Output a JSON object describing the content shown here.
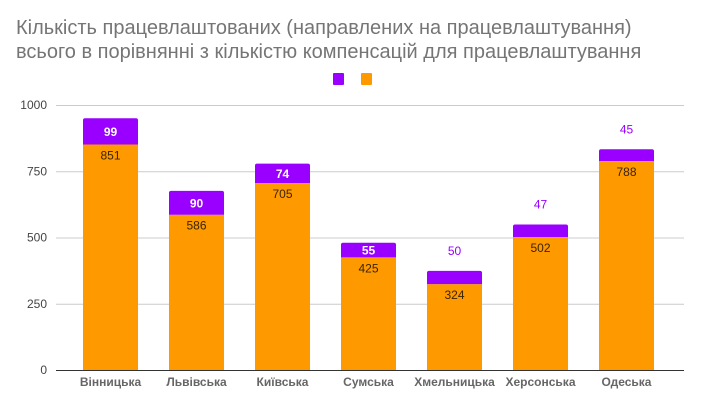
{
  "chart_data": {
    "type": "bar",
    "stacked": true,
    "title_lines": [
      "Кількість працевлаштованих (направлених на працевлаштування)",
      "всього в порівнянні з кількістю компенсацій для працевлаштування"
    ],
    "xlabel": "",
    "ylabel": "",
    "categories": [
      "Вінницька",
      "Львівська",
      "Київська",
      "Сумська",
      "Хмельницька",
      "Херсонська",
      "Одеська"
    ],
    "series": [
      {
        "name": "",
        "color": "#ff9900",
        "values": [
          851,
          586,
          705,
          425,
          324,
          502,
          788
        ]
      },
      {
        "name": "",
        "color": "#9900ff",
        "values": [
          99,
          90,
          74,
          55,
          50,
          47,
          45
        ]
      }
    ],
    "ylim": [
      0,
      1000
    ],
    "yticks": [
      0,
      250,
      500,
      750,
      1000
    ],
    "grid": true,
    "legend_position": "top-center",
    "colors": {
      "title": "#757575",
      "grid": "#cccccc",
      "axis": "#333333",
      "label_on_orange": "#3a2400",
      "label_on_purple": "#ffffff",
      "label_outside": "#9900ff"
    }
  }
}
